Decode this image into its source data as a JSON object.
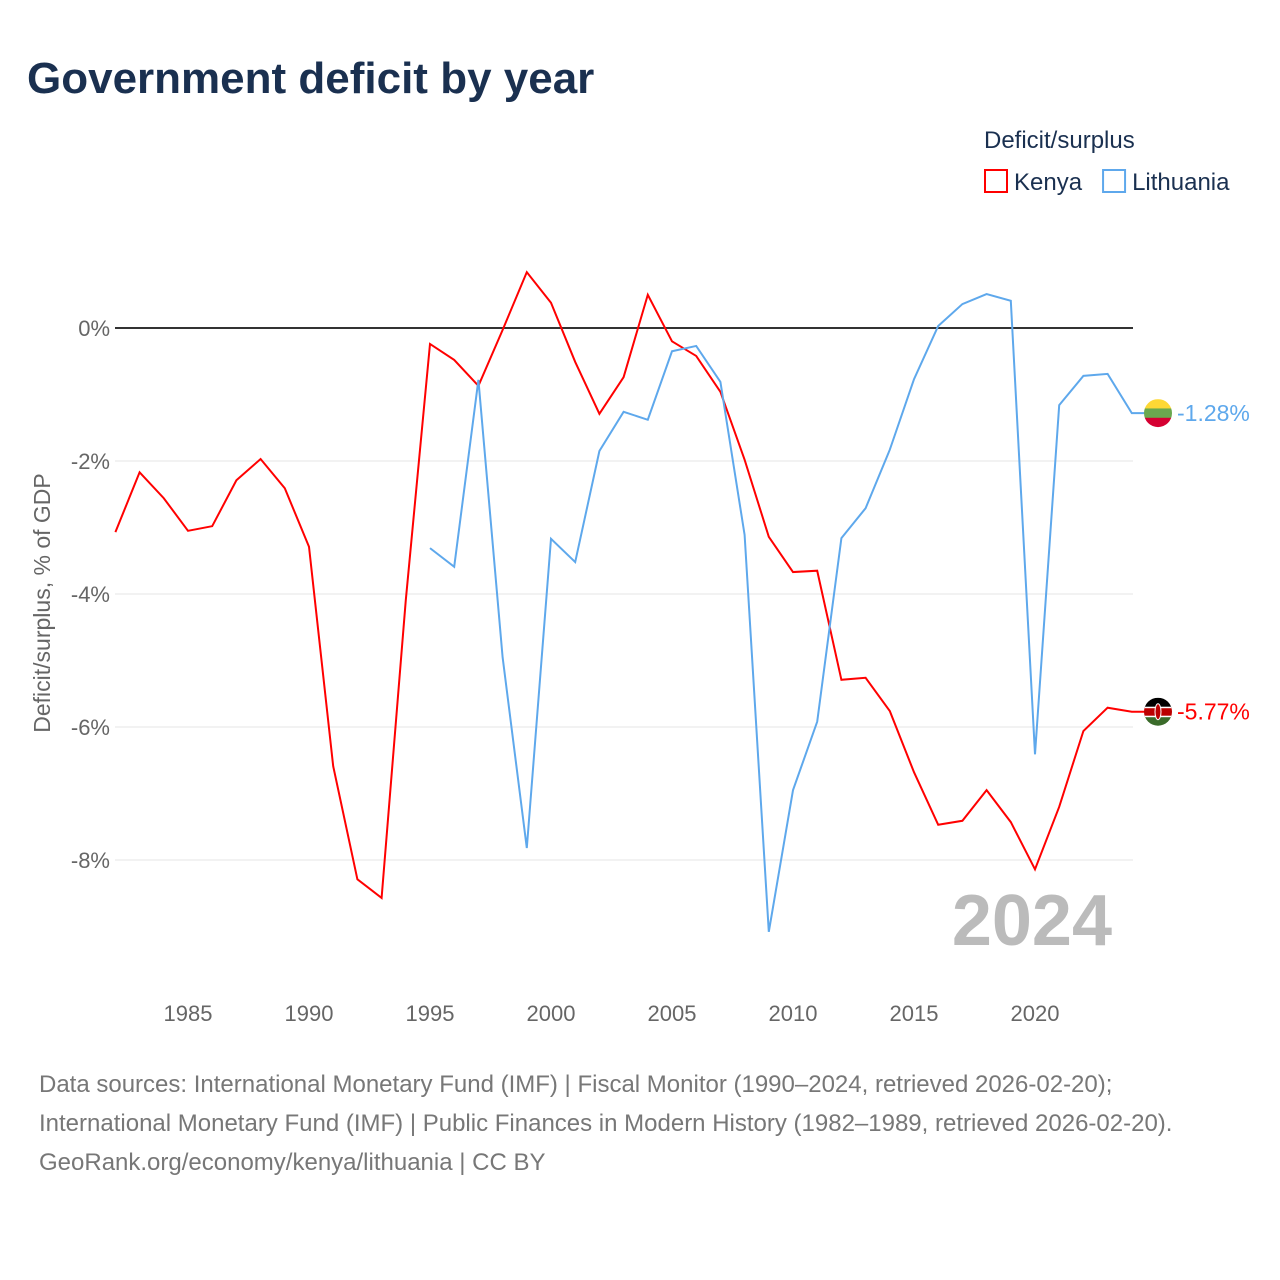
{
  "chart_data": {
    "type": "line",
    "title": "Government deficit by year",
    "ylabel": "Deficit/surplus, % of GDP",
    "xlabel": "",
    "xlim": [
      1982,
      2024
    ],
    "ylim": [
      -9.5,
      1.2
    ],
    "x_ticks": [
      1985,
      1990,
      1995,
      2000,
      2005,
      2010,
      2015,
      2020
    ],
    "y_ticks": [
      0,
      -2,
      -4,
      -6,
      -8
    ],
    "y_tick_labels": [
      "0%",
      "-2%",
      "-4%",
      "-6%",
      "-8%"
    ],
    "legend_title": "Deficit/surplus",
    "legend_position": "top-right",
    "year_label": "2024",
    "series": [
      {
        "name": "Kenya",
        "color": "#ff0000",
        "end_label": "-5.77%",
        "start_year": 1982,
        "values": [
          -3.07,
          -2.17,
          -2.56,
          -3.05,
          -2.98,
          -2.29,
          -1.97,
          -2.41,
          -3.29,
          -6.59,
          -8.29,
          -8.57,
          -4.09,
          -0.24,
          -0.48,
          -0.87,
          -0.03,
          0.84,
          0.38,
          -0.51,
          -1.29,
          -0.74,
          0.5,
          -0.2,
          -0.42,
          -0.96,
          -1.98,
          -3.14,
          -3.67,
          -3.65,
          -5.29,
          -5.26,
          -5.76,
          -6.68,
          -7.47,
          -7.41,
          -6.95,
          -7.43,
          -8.14,
          -7.2,
          -6.06,
          -5.71,
          -5.77
        ]
      },
      {
        "name": "Lithuania",
        "color": "#5ea8ec",
        "end_label": "-1.28%",
        "start_year": 1995,
        "values": [
          -3.31,
          -3.59,
          -0.78,
          -4.95,
          -7.82,
          -3.17,
          -3.52,
          -1.85,
          -1.26,
          -1.38,
          -0.35,
          -0.27,
          -0.81,
          -3.11,
          -9.08,
          -6.95,
          -5.92,
          -3.16,
          -2.71,
          -1.83,
          -0.77,
          0.03,
          0.36,
          0.51,
          0.41,
          -6.41,
          -1.16,
          -0.72,
          -0.69,
          -1.28
        ]
      }
    ]
  },
  "footer": {
    "sources": "Data sources: International Monetary Fund (IMF) | Fiscal Monitor (1990–2024, retrieved 2026-02-20); International Monetary Fund (IMF) | Public Finances in Modern History (1982–1989, retrieved 2026-02-20).",
    "credit": "GeoRank.org/economy/kenya/lithuania | CC BY"
  }
}
